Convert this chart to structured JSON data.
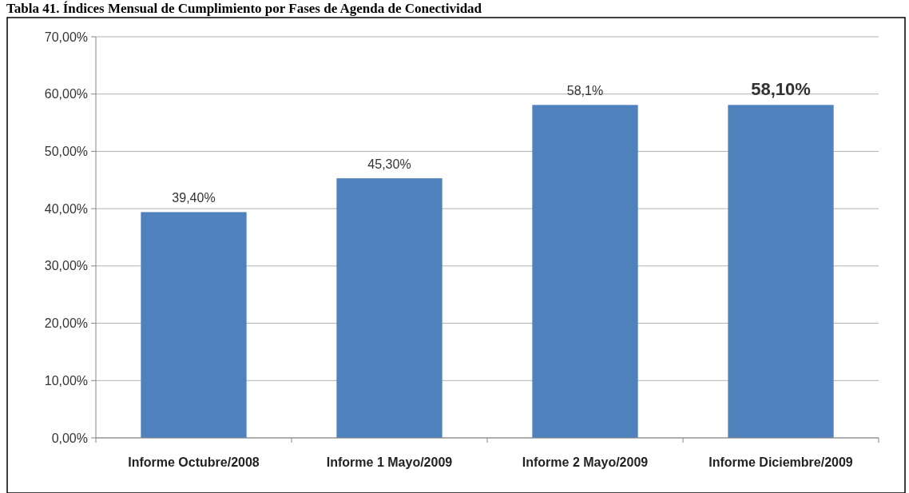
{
  "chart_data": {
    "type": "bar",
    "title": "Tabla 41. Índices Mensual de Cumplimiento por Fases de Agenda de Conectividad",
    "categories": [
      "Informe Octubre/2008",
      "Informe 1 Mayo/2009",
      "Informe 2 Mayo/2009",
      "Informe Diciembre/2009"
    ],
    "values": [
      39.4,
      45.3,
      58.1,
      58.1
    ],
    "value_labels": [
      "39,40%",
      "45,30%",
      "58,1%",
      "58,10%"
    ],
    "color": "#4f81bd",
    "ylim": [
      0,
      70
    ],
    "yticks": [
      {
        "value": 0,
        "label": "0,00%"
      },
      {
        "value": 10,
        "label": "10,00%"
      },
      {
        "value": 20,
        "label": "20,00%"
      },
      {
        "value": 30,
        "label": "30,00%"
      },
      {
        "value": 40,
        "label": "40,00%"
      },
      {
        "value": 50,
        "label": "50,00%"
      },
      {
        "value": 60,
        "label": "60,00%"
      },
      {
        "value": 70,
        "label": "70,00%"
      }
    ],
    "grid": "y"
  }
}
